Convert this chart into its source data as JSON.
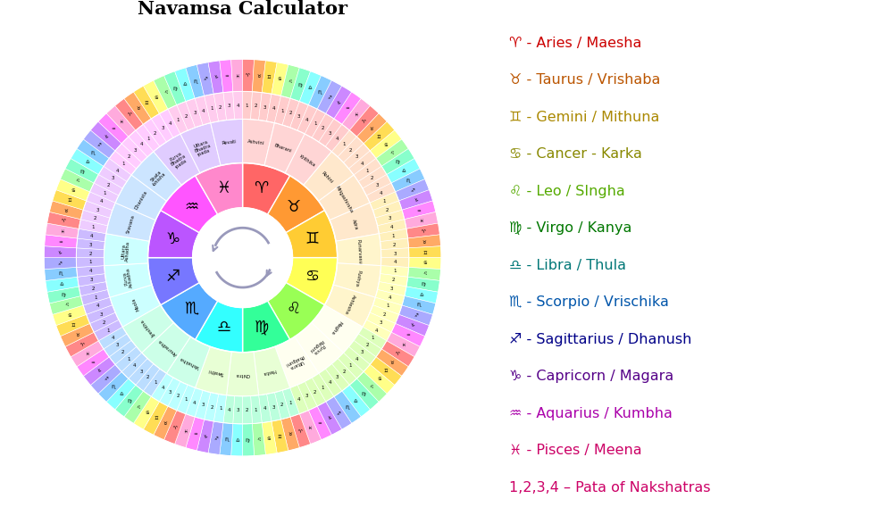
{
  "title": "Navamsa Calculator",
  "bg_color": "#FFFFFF",
  "arrow_color": "#9999BB",
  "r_inner": 0.215,
  "r_zodiac": 0.41,
  "r_naksh": 0.6,
  "r_pada": 0.72,
  "r_navamsa": 0.86,
  "zodiac_colors": [
    "#FF6666",
    "#FF9933",
    "#FFCC33",
    "#FFFF55",
    "#99FF55",
    "#33FF99",
    "#33FFFF",
    "#55AAFF",
    "#7777FF",
    "#BB55FF",
    "#FF55FF",
    "#FF88CC"
  ],
  "zodiac_symbols": [
    "♈",
    "♉",
    "♊",
    "♋",
    "♌",
    "♍",
    "♎",
    "♏",
    "♐",
    "♑",
    "♒",
    "♓"
  ],
  "nakshatra_names": [
    "Ashvini",
    "Bharani",
    "Krithika",
    "Rohini",
    "Mrigashirsha",
    "Adra",
    "Punarvasu",
    "Pushya",
    "Ashlesha",
    "Magha",
    "Purva\nPalguni",
    "Uttara\nPhalguni",
    "Hasta",
    "Chitra",
    "Swathi",
    "Vishakha",
    "Anuradha",
    "Jyeshtha",
    "Moola",
    "Purva\nAshadha",
    "Uttara\nAshadha",
    "Sravana",
    "Dhanista",
    "Shata\n-bhisha",
    "Purva\nBhadra\n-pada",
    "Uttara\nBhadra\n-pada",
    "Revati"
  ],
  "nakshatra_bg": "#F5CBA7",
  "pada_colors_by_sign": [
    "#FFCCCC",
    "#FFE0CC",
    "#FFF0BB",
    "#FFFFBB",
    "#DDFFBB",
    "#BBFFDD",
    "#BBFFFF",
    "#BBDDFF",
    "#CCBBFF",
    "#EECCFF",
    "#FFCCFF",
    "#FFCCEE"
  ],
  "navamsa_sequence": [
    [
      0,
      1,
      2,
      3,
      4,
      5,
      6,
      7,
      8
    ],
    [
      9,
      10,
      11,
      0,
      1,
      2,
      3,
      4,
      5
    ],
    [
      6,
      7,
      8,
      9,
      10,
      11,
      0,
      1,
      2
    ],
    [
      3,
      4,
      5,
      6,
      7,
      8,
      9,
      10,
      11
    ],
    [
      0,
      1,
      2,
      3,
      4,
      5,
      6,
      7,
      8
    ],
    [
      9,
      10,
      11,
      0,
      1,
      2,
      3,
      4,
      5
    ],
    [
      6,
      7,
      8,
      9,
      10,
      11,
      0,
      1,
      2
    ],
    [
      3,
      4,
      5,
      6,
      7,
      8,
      9,
      10,
      11
    ],
    [
      0,
      1,
      2,
      3,
      4,
      5,
      6,
      7,
      8
    ],
    [
      9,
      10,
      11,
      0,
      1,
      2,
      3,
      4,
      5
    ],
    [
      6,
      7,
      8,
      9,
      10,
      11,
      0,
      1,
      2
    ],
    [
      3,
      4,
      5,
      6,
      7,
      8,
      9,
      10,
      11
    ]
  ],
  "navamsa_colors": [
    "#FF8888",
    "#FFAA66",
    "#FFDD55",
    "#FFFF88",
    "#AAFFAA",
    "#88FFCC",
    "#88FFFF",
    "#88CCFF",
    "#AAAAFF",
    "#CC88FF",
    "#FF88FF",
    "#FFAADD"
  ],
  "legend": [
    {
      "symbol": "♈",
      "text": " - Aries / Maesha",
      "color": "#CC0000"
    },
    {
      "symbol": "♉",
      "text": " - Taurus / Vrishaba",
      "color": "#BB5500"
    },
    {
      "symbol": "♊",
      "text": " - Gemini / Mithuna",
      "color": "#AA8800"
    },
    {
      "symbol": "♋",
      "text": " - Cancer - Karka",
      "color": "#888800"
    },
    {
      "symbol": "♌",
      "text": " - Leo / SIngha",
      "color": "#55AA00"
    },
    {
      "symbol": "♍",
      "text": " - Virgo / Kanya",
      "color": "#007700"
    },
    {
      "symbol": "♎",
      "text": " - Libra / Thula",
      "color": "#007777"
    },
    {
      "symbol": "♏",
      "text": " - Scorpio / Vrischika",
      "color": "#0055AA"
    },
    {
      "symbol": "♐",
      "text": " - Sagittarius / Dhanush",
      "color": "#000088"
    },
    {
      "symbol": "♑",
      "text": " - Capricorn / Magara",
      "color": "#550088"
    },
    {
      "symbol": "♒",
      "text": " - Aquarius / Kumbha",
      "color": "#AA00AA"
    },
    {
      "symbol": "♓",
      "text": " - Pisces / Meena",
      "color": "#CC0066"
    },
    {
      "symbol": "1,2,3,4",
      "text": " – Pata of Nakshatras",
      "color": "#CC0066"
    }
  ]
}
